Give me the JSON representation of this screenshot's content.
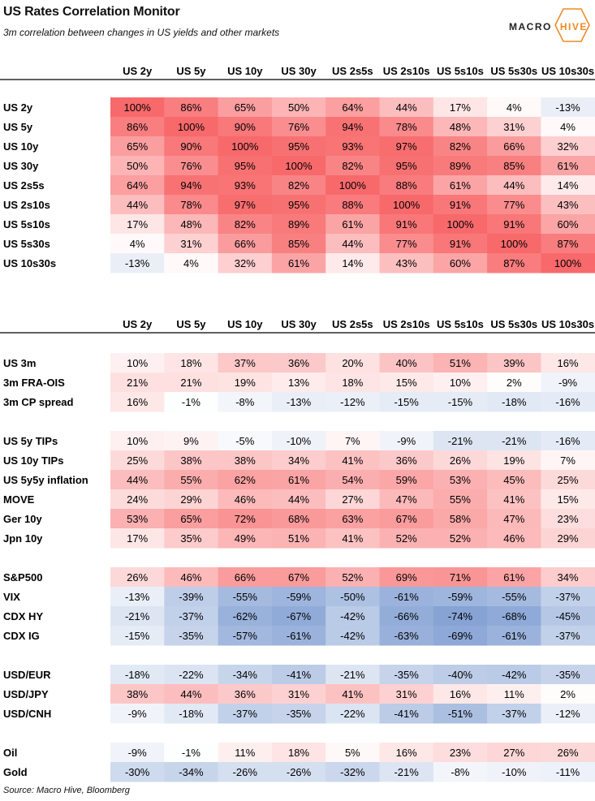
{
  "header": {
    "title": "US Rates Correlation Monitor",
    "subtitle": "3m correlation between changes in US yields and other markets",
    "logo_left": "MACRO",
    "logo_right": "HIVE",
    "brand_color": "#f08a24"
  },
  "source": "Source: Macro Hive, Bloomberg",
  "chart_data": [
    {
      "type": "heatmap",
      "columns": [
        "US 2y",
        "US 5y",
        "US 10y",
        "US 30y",
        "US 2s5s",
        "US 2s10s",
        "US 5s10s",
        "US 5s30s",
        "US 10s30s"
      ],
      "groups": [
        {
          "rows": [
            {
              "label": "US 2y",
              "values": [
                100,
                86,
                65,
                50,
                64,
                44,
                17,
                4,
                -13
              ]
            },
            {
              "label": "US 5y",
              "values": [
                86,
                100,
                90,
                76,
                94,
                78,
                48,
                31,
                4
              ]
            },
            {
              "label": "US 10y",
              "values": [
                65,
                90,
                100,
                95,
                93,
                97,
                82,
                66,
                32
              ]
            },
            {
              "label": "US 30y",
              "values": [
                50,
                76,
                95,
                100,
                82,
                95,
                89,
                85,
                61
              ]
            },
            {
              "label": "US 2s5s",
              "values": [
                64,
                94,
                93,
                82,
                100,
                88,
                61,
                44,
                14
              ]
            },
            {
              "label": "US 2s10s",
              "values": [
                44,
                78,
                97,
                95,
                88,
                100,
                91,
                77,
                43
              ]
            },
            {
              "label": "US 5s10s",
              "values": [
                17,
                48,
                82,
                89,
                61,
                91,
                100,
                91,
                60
              ]
            },
            {
              "label": "US 5s30s",
              "values": [
                4,
                31,
                66,
                85,
                44,
                77,
                91,
                100,
                87
              ]
            },
            {
              "label": "US 10s30s",
              "values": [
                -13,
                4,
                32,
                61,
                14,
                43,
                60,
                87,
                100
              ]
            }
          ]
        }
      ],
      "value_range": [
        -100,
        100
      ],
      "color_scale": {
        "negative": "#5b82c5",
        "mid": "#ffffff",
        "positive": "#f8696b"
      }
    },
    {
      "type": "heatmap",
      "columns": [
        "US 2y",
        "US 5y",
        "US 10y",
        "US 30y",
        "US 2s5s",
        "US 2s10s",
        "US 5s10s",
        "US 5s30s",
        "US 10s30s"
      ],
      "groups": [
        {
          "rows": [
            {
              "label": "US 3m",
              "values": [
                10,
                18,
                37,
                36,
                20,
                40,
                51,
                39,
                16
              ]
            },
            {
              "label": "3m FRA-OIS",
              "values": [
                21,
                21,
                19,
                13,
                18,
                15,
                10,
                2,
                -9
              ]
            },
            {
              "label": "3m CP spread",
              "values": [
                16,
                -1,
                -8,
                -13,
                -12,
                -15,
                -15,
                -18,
                -16
              ]
            }
          ]
        },
        {
          "rows": [
            {
              "label": "US 5y TIPs",
              "values": [
                10,
                9,
                -5,
                -10,
                7,
                -9,
                -21,
                -21,
                -16
              ]
            },
            {
              "label": "US 10y TIPs",
              "values": [
                25,
                38,
                38,
                34,
                41,
                36,
                26,
                19,
                7
              ]
            },
            {
              "label": "US 5y5y inflation",
              "values": [
                44,
                55,
                62,
                61,
                54,
                59,
                53,
                45,
                25
              ]
            },
            {
              "label": "MOVE",
              "values": [
                24,
                29,
                46,
                44,
                27,
                47,
                55,
                41,
                15
              ]
            },
            {
              "label": "Ger 10y",
              "values": [
                53,
                65,
                72,
                68,
                63,
                67,
                58,
                47,
                23
              ]
            },
            {
              "label": "Jpn 10y",
              "values": [
                17,
                35,
                49,
                51,
                41,
                52,
                52,
                46,
                29
              ]
            }
          ]
        },
        {
          "rows": [
            {
              "label": "S&P500",
              "values": [
                26,
                46,
                66,
                67,
                52,
                69,
                71,
                61,
                34
              ]
            },
            {
              "label": "VIX",
              "values": [
                -13,
                -39,
                -55,
                -59,
                -50,
                -61,
                -59,
                -55,
                -37
              ]
            },
            {
              "label": "CDX HY",
              "values": [
                -21,
                -37,
                -62,
                -67,
                -42,
                -66,
                -74,
                -68,
                -45
              ]
            },
            {
              "label": "CDX IG",
              "values": [
                -15,
                -35,
                -57,
                -61,
                -42,
                -63,
                -69,
                -61,
                -37
              ]
            }
          ]
        },
        {
          "rows": [
            {
              "label": "USD/EUR",
              "values": [
                -18,
                -22,
                -34,
                -41,
                -21,
                -35,
                -40,
                -42,
                -35
              ]
            },
            {
              "label": "USD/JPY",
              "values": [
                38,
                44,
                36,
                31,
                41,
                31,
                16,
                11,
                2
              ]
            },
            {
              "label": "USD/CNH",
              "values": [
                -9,
                -18,
                -37,
                -35,
                -22,
                -41,
                -51,
                -37,
                -12
              ]
            }
          ]
        },
        {
          "rows": [
            {
              "label": "Oil",
              "values": [
                -9,
                -1,
                11,
                18,
                5,
                16,
                23,
                27,
                26
              ]
            },
            {
              "label": "Gold",
              "values": [
                -30,
                -34,
                -26,
                -26,
                -32,
                -21,
                -8,
                -10,
                -11
              ]
            }
          ]
        }
      ],
      "value_range": [
        -100,
        100
      ],
      "color_scale": {
        "negative": "#5b82c5",
        "mid": "#ffffff",
        "positive": "#f8696b"
      }
    }
  ]
}
